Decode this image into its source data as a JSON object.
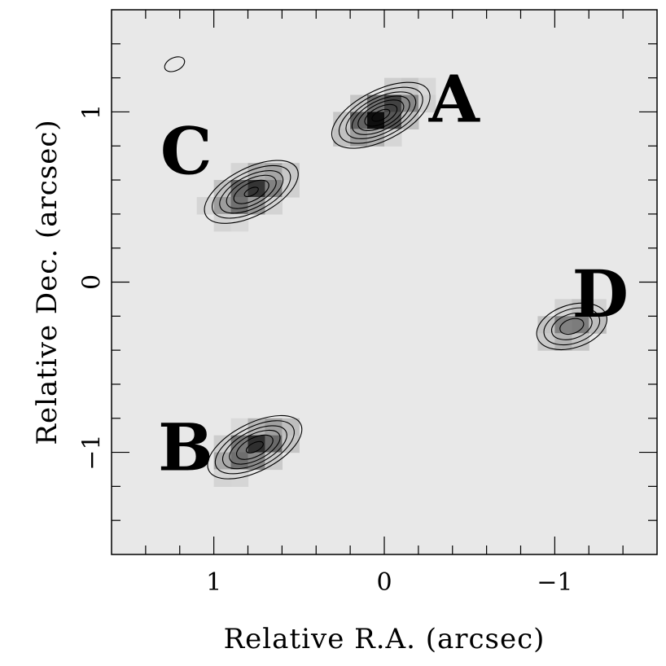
{
  "chart_data": {
    "type": "heatmap",
    "xlabel": "Relative R.A. (arcsec)",
    "ylabel": "Relative Dec. (arcsec)",
    "xlim": [
      1.6,
      -1.6
    ],
    "ylim": [
      -1.6,
      1.6
    ],
    "x_ticks": [
      {
        "value": 1,
        "label": "1"
      },
      {
        "value": 0,
        "label": "0"
      },
      {
        "value": -1,
        "label": "−1"
      }
    ],
    "y_ticks": [
      {
        "value": 1,
        "label": "1"
      },
      {
        "value": 0,
        "label": "0"
      },
      {
        "value": -1,
        "label": "−1"
      }
    ],
    "minor_tick_step": 0.2,
    "colormap": "grayscale (dark = high intensity)",
    "contours": true,
    "components": [
      {
        "label": "A",
        "x": 0.02,
        "y": 0.98,
        "peak": 1.0,
        "major": 0.28,
        "minor": 0.13,
        "pa_deg": 27
      },
      {
        "label": "B",
        "x": 0.76,
        "y": -0.97,
        "peak": 0.82,
        "major": 0.28,
        "minor": 0.13,
        "pa_deg": 27
      },
      {
        "label": "C",
        "x": 0.78,
        "y": 0.53,
        "peak": 0.8,
        "major": 0.28,
        "minor": 0.13,
        "pa_deg": 27
      },
      {
        "label": "D",
        "x": -1.1,
        "y": -0.26,
        "peak": 0.52,
        "major": 0.22,
        "minor": 0.13,
        "pa_deg": 18
      }
    ],
    "noise_contours": [
      {
        "x": 1.23,
        "y": 1.28
      }
    ],
    "colors": {
      "background": "#e8e8e8",
      "contour": "#000000",
      "frame": "#000000"
    }
  }
}
